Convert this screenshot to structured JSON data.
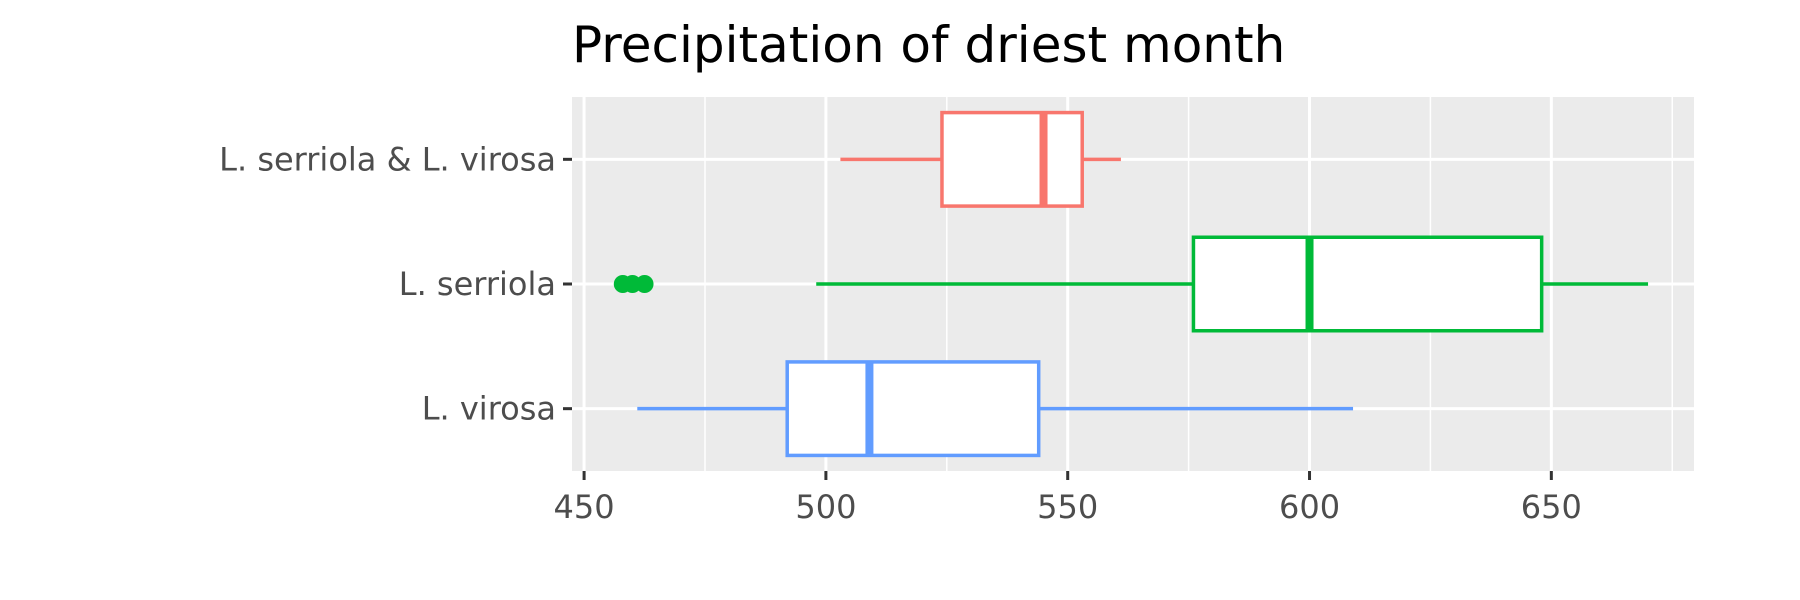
{
  "chart_data": {
    "type": "boxplot",
    "orientation": "horizontal",
    "title": "Precipitation of driest month",
    "xlabel": "",
    "ylabel": "",
    "xlim": [
      447.5,
      679.5
    ],
    "x_ticks": [
      450,
      500,
      550,
      600,
      650
    ],
    "grid": true,
    "legend": "none",
    "categories": [
      "L. serriola & L. virosa",
      "L. serriola",
      "L. virosa"
    ],
    "series": [
      {
        "category": "L. serriola & L. virosa",
        "color": "#F8766D",
        "whisker_low": 503,
        "q1": 524,
        "median": 545,
        "q3": 553,
        "whisker_high": 561,
        "outliers": []
      },
      {
        "category": "L. serriola",
        "color": "#00BA38",
        "whisker_low": 498,
        "q1": 576,
        "median": 600,
        "q3": 648,
        "whisker_high": 670,
        "outliers": [
          458,
          460,
          462.5
        ]
      },
      {
        "category": "L. virosa",
        "color": "#619CFF",
        "whisker_low": 461,
        "q1": 492,
        "median": 509,
        "q3": 544,
        "whisker_high": 609,
        "outliers": []
      }
    ]
  }
}
